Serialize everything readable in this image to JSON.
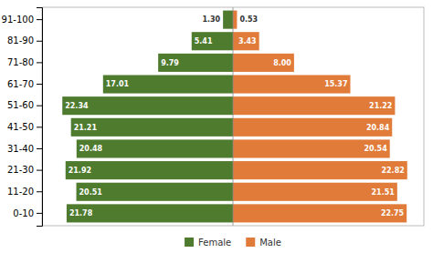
{
  "chart_data": {
    "type": "pyramid",
    "orientation": "horizontal",
    "categories": [
      "0-10",
      "11-20",
      "21-30",
      "31-40",
      "41-50",
      "51-60",
      "61-70",
      "71-80",
      "81-90",
      "91-100"
    ],
    "series": [
      {
        "name": "Female",
        "color": "#4E7B2E",
        "values": [
          21.78,
          20.51,
          21.92,
          20.48,
          21.21,
          22.34,
          17.01,
          9.79,
          5.41,
          1.3
        ],
        "value_labels": [
          "21.78",
          "20.51",
          "21.92",
          "20.48",
          "21.21",
          "22.34",
          "17.01",
          "9.79",
          "5.41",
          "1.30"
        ]
      },
      {
        "name": "Male",
        "color": "#E07B39",
        "values": [
          22.75,
          21.51,
          22.82,
          20.54,
          20.84,
          21.22,
          15.37,
          8.0,
          3.43,
          0.53
        ],
        "value_labels": [
          "22.75",
          "21.51",
          "22.82",
          "20.54",
          "20.84",
          "21.22",
          "15.37",
          "8.00",
          "3.43",
          "0.53"
        ]
      }
    ],
    "xlim": [
      -25,
      25
    ],
    "tick_labels": "y",
    "data_labels": true,
    "grid": false,
    "legend": "bottom"
  }
}
